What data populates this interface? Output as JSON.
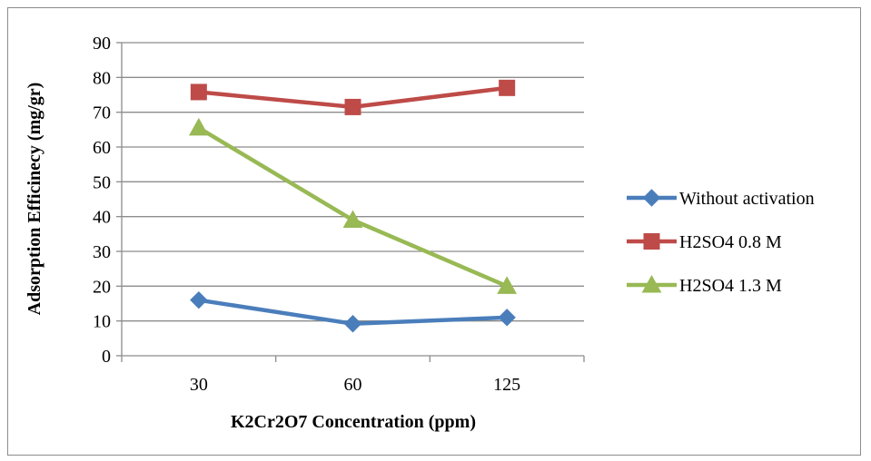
{
  "chart_data": {
    "type": "line",
    "title": "",
    "xlabel": "K2Cr2O7 Concentration (ppm)",
    "ylabel": "Adsorption Efficinecy (mg/gr)",
    "categories": [
      "30",
      "60",
      "125"
    ],
    "ylim": [
      0,
      90
    ],
    "yticks": [
      "0",
      "10",
      "20",
      "30",
      "40",
      "50",
      "60",
      "70",
      "80",
      "90"
    ],
    "grid": true,
    "legend_position": "right",
    "series": [
      {
        "name": "Without activation",
        "values": [
          16,
          9.2,
          11
        ],
        "color": "#4a7ebb",
        "marker": "diamond"
      },
      {
        "name": "H2SO4 0.8 M",
        "values": [
          75.8,
          71.5,
          77
        ],
        "color": "#be4b48",
        "marker": "square"
      },
      {
        "name": "H2SO4 1.3 M",
        "values": [
          65.5,
          39,
          20
        ],
        "color": "#98b954",
        "marker": "triangle"
      }
    ]
  }
}
